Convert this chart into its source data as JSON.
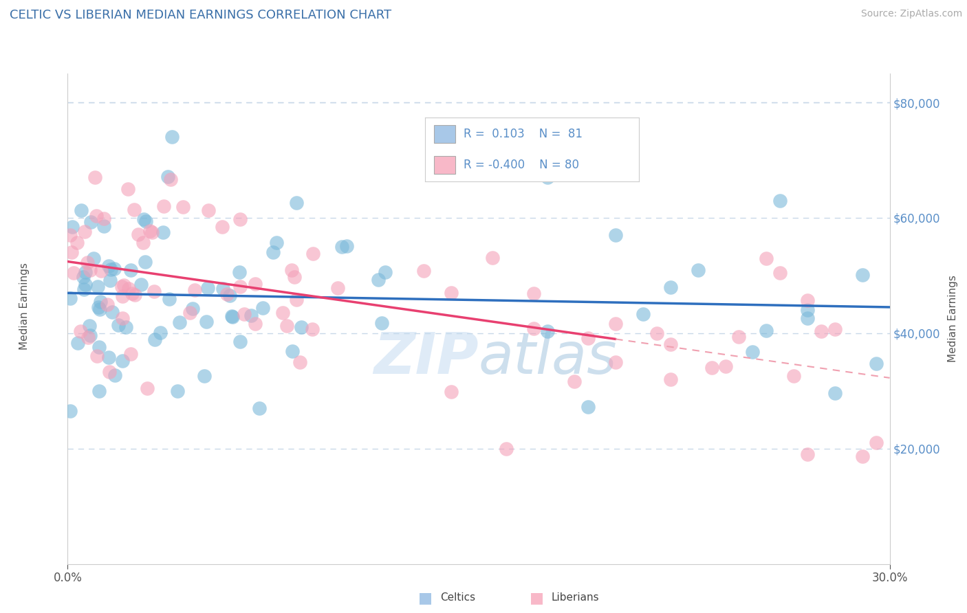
{
  "title": "CELTIC VS LIBERIAN MEDIAN EARNINGS CORRELATION CHART",
  "source_text": "Source: ZipAtlas.com",
  "ylabel": "Median Earnings",
  "xlim": [
    0.0,
    0.3
  ],
  "ylim": [
    0,
    85000
  ],
  "y_tick_values": [
    20000,
    40000,
    60000,
    80000
  ],
  "celtic_color": "#7ab8d9",
  "liberian_color": "#f4a0b8",
  "celtic_line_color": "#2e6fbe",
  "liberian_line_color": "#e84070",
  "liberian_line_dash_color": "#f0a0b0",
  "watermark_color": "#c8ddf0",
  "r_celtic": 0.103,
  "r_liberian": -0.4,
  "n_celtic": 81,
  "n_liberian": 80,
  "title_color": "#3a6fa8",
  "axis_color": "#5a8fc8",
  "grid_color": "#c8d8e8",
  "background_color": "#ffffff",
  "title_fontsize": 13,
  "label_fontsize": 11,
  "tick_fontsize": 12,
  "source_fontsize": 10,
  "legend_color_celtic": "#a8c8e8",
  "legend_color_liberian": "#f8b8c8"
}
